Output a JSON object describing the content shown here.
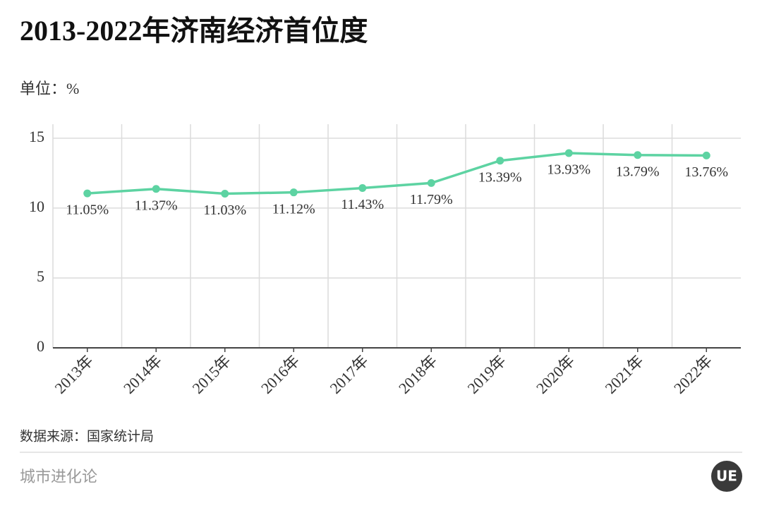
{
  "chart_data": {
    "type": "line",
    "title": "2013-2022年济南经济首位度",
    "unit_label": "单位：%",
    "categories": [
      "2013年",
      "2014年",
      "2015年",
      "2016年",
      "2017年",
      "2018年",
      "2019年",
      "2020年",
      "2021年",
      "2022年"
    ],
    "values": [
      11.05,
      11.37,
      11.03,
      11.12,
      11.43,
      11.79,
      13.39,
      13.93,
      13.79,
      13.76
    ],
    "value_labels": [
      "11.05%",
      "11.37%",
      "11.03%",
      "11.12%",
      "11.43%",
      "11.79%",
      "13.39%",
      "13.93%",
      "13.79%",
      "13.76%"
    ],
    "color": "#5dd3a2",
    "ylim": [
      0,
      16
    ],
    "yticks": [
      0,
      5,
      10,
      15
    ],
    "grid": true,
    "source": "数据来源：国家统计局",
    "brand": "城市进化论",
    "logo": "UE"
  }
}
